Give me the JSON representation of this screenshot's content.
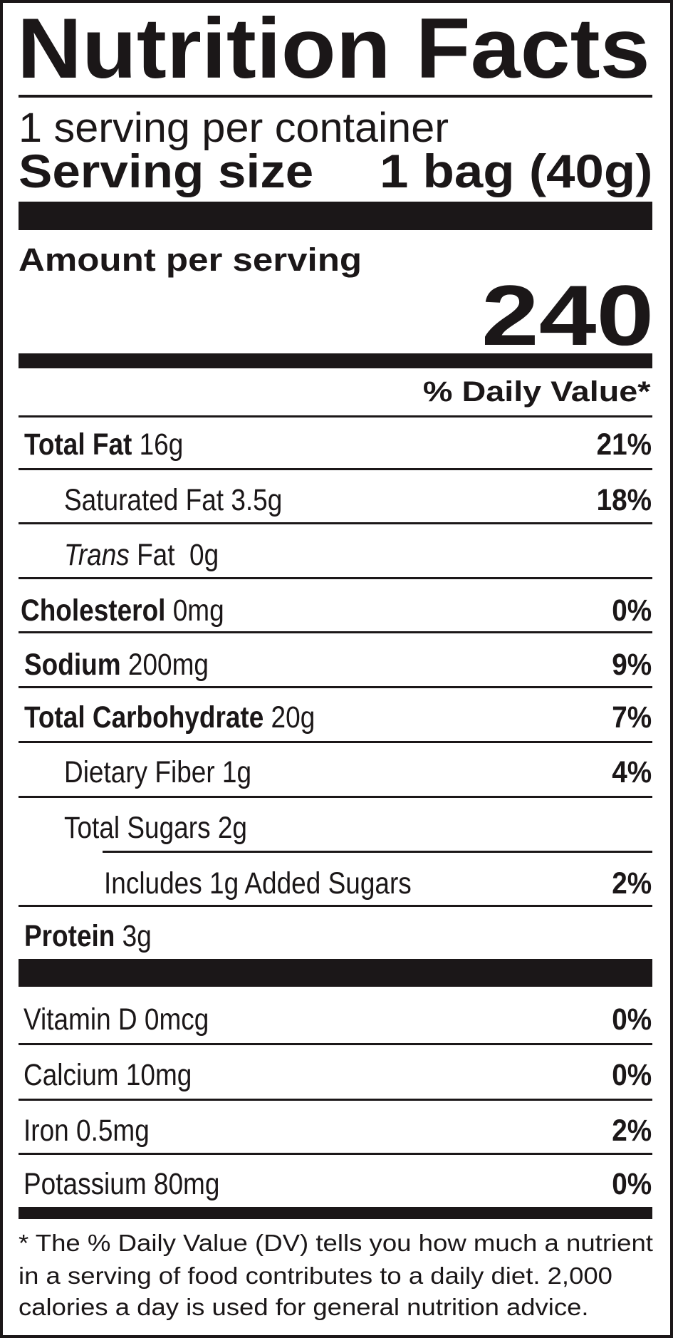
{
  "title": "Nutrition Facts",
  "servings_per_container": "1 serving per container",
  "serving_size": {
    "label": "Serving size",
    "value": "1 bag (40g)"
  },
  "amount_per_serving": "Amount per serving",
  "calories": "240",
  "daily_value_header": "% Daily Value*",
  "nutrients": [
    {
      "parts": [
        {
          "text": "Total Fat",
          "style": "bold"
        },
        {
          "text": " 16g",
          "style": "normal"
        }
      ],
      "dv": "21%",
      "indent": 0
    },
    {
      "parts": [
        {
          "text": "Saturated Fat 3.5g",
          "style": "normal"
        }
      ],
      "dv": "18%",
      "indent": 1
    },
    {
      "parts": [
        {
          "text": "Trans",
          "style": "italic"
        },
        {
          "text": " Fat  0g",
          "style": "normal"
        }
      ],
      "dv": "",
      "indent": 1
    },
    {
      "parts": [
        {
          "text": "Cholesterol",
          "style": "bold"
        },
        {
          "text": " 0mg",
          "style": "normal"
        }
      ],
      "dv": "0%",
      "indent": 0
    },
    {
      "parts": [
        {
          "text": "Sodium",
          "style": "bold"
        },
        {
          "text": " 200mg",
          "style": "normal"
        }
      ],
      "dv": "9%",
      "indent": 0
    },
    {
      "parts": [
        {
          "text": "Total Carbohydrate",
          "style": "bold"
        },
        {
          "text": " 20g",
          "style": "normal"
        }
      ],
      "dv": "7%",
      "indent": 0
    },
    {
      "parts": [
        {
          "text": "Dietary Fiber 1g",
          "style": "normal"
        }
      ],
      "dv": "4%",
      "indent": 1
    },
    {
      "parts": [
        {
          "text": "Total Sugars 2g",
          "style": "normal"
        }
      ],
      "dv": "",
      "indent": 1
    },
    {
      "parts": [
        {
          "text": "Includes 1g Added Sugars",
          "style": "normal"
        }
      ],
      "dv": "2%",
      "indent": 2
    },
    {
      "parts": [
        {
          "text": "Protein",
          "style": "bold"
        },
        {
          "text": " 3g",
          "style": "normal"
        }
      ],
      "dv": "",
      "indent": 0
    }
  ],
  "vitamins": [
    {
      "label": "Vitamin D 0mcg",
      "dv": "0%"
    },
    {
      "label": "Calcium 10mg",
      "dv": "0%"
    },
    {
      "label": "Iron 0.5mg",
      "dv": "2%"
    },
    {
      "label": "Potassium 80mg",
      "dv": "0%"
    }
  ],
  "footnote": [
    "* The % Daily Value (DV) tells you how much a nutrient",
    "in a serving of food contributes to a daily diet. 2,000",
    "calories a day is used for general nutrition advice."
  ],
  "colors": {
    "ink": "#1b1718",
    "background": "#ffffff"
  }
}
